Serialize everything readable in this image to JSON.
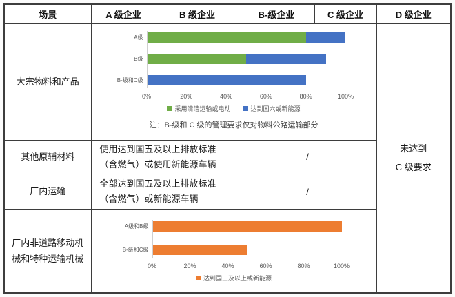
{
  "table": {
    "headers": [
      {
        "label": "场景"
      },
      {
        "label": "A 级企业"
      },
      {
        "label": "B 级企业"
      },
      {
        "label": "B-级企业"
      },
      {
        "label": "C 级企业"
      },
      {
        "label": "D 级企业"
      }
    ],
    "rows": [
      {
        "scene": "大宗物料和产品"
      },
      {
        "scene": "其他原辅材料",
        "requirement": [
          "使用达到国五及以上排放标准",
          "（含燃气）或使用新能源车辆"
        ],
        "bc_cell": "/"
      },
      {
        "scene": "厂内运输",
        "requirement": [
          "全部达到国五及以上排放标准",
          "（含燃气）或新能源车辆"
        ],
        "bc_cell": "/"
      },
      {
        "scene": "厂内非道路移动机械和特种运输机械"
      }
    ],
    "d_cell": {
      "line1": "未达到",
      "line2": "C 级要求"
    }
  },
  "chart_data": [
    {
      "type": "bar",
      "orientation": "horizontal",
      "stacked": true,
      "categories": [
        "A级",
        "B级",
        "B-级和C级"
      ],
      "series": [
        {
          "name": "采用清洁运输或电动",
          "color": "#70AD47",
          "values": [
            80,
            50,
            0
          ]
        },
        {
          "name": "达到国六或新能源",
          "color": "#4472C4",
          "values": [
            20,
            40,
            80
          ]
        }
      ],
      "x_ticks": [
        "0%",
        "20%",
        "40%",
        "60%",
        "80%",
        "100%"
      ],
      "xlim": [
        0,
        100
      ],
      "grid": false,
      "legend_position": "bottom",
      "note": "注：B-级和 C 级的管理要求仅对物料公路运输部分"
    },
    {
      "type": "bar",
      "orientation": "horizontal",
      "stacked": false,
      "categories": [
        "A级和B级",
        "B-级和C级"
      ],
      "series": [
        {
          "name": "达到国三及以上或新能源",
          "color": "#ED7D31",
          "values": [
            100,
            50
          ]
        }
      ],
      "x_ticks": [
        "0%",
        "20%",
        "40%",
        "60%",
        "80%",
        "100%"
      ],
      "xlim": [
        0,
        100
      ],
      "grid": false,
      "legend_position": "bottom"
    }
  ],
  "colors": {
    "series_green": "#70AD47",
    "series_blue": "#4472C4",
    "series_orange": "#ED7D31",
    "table_border": "#3d3d3d",
    "chart_text": "#595959"
  }
}
